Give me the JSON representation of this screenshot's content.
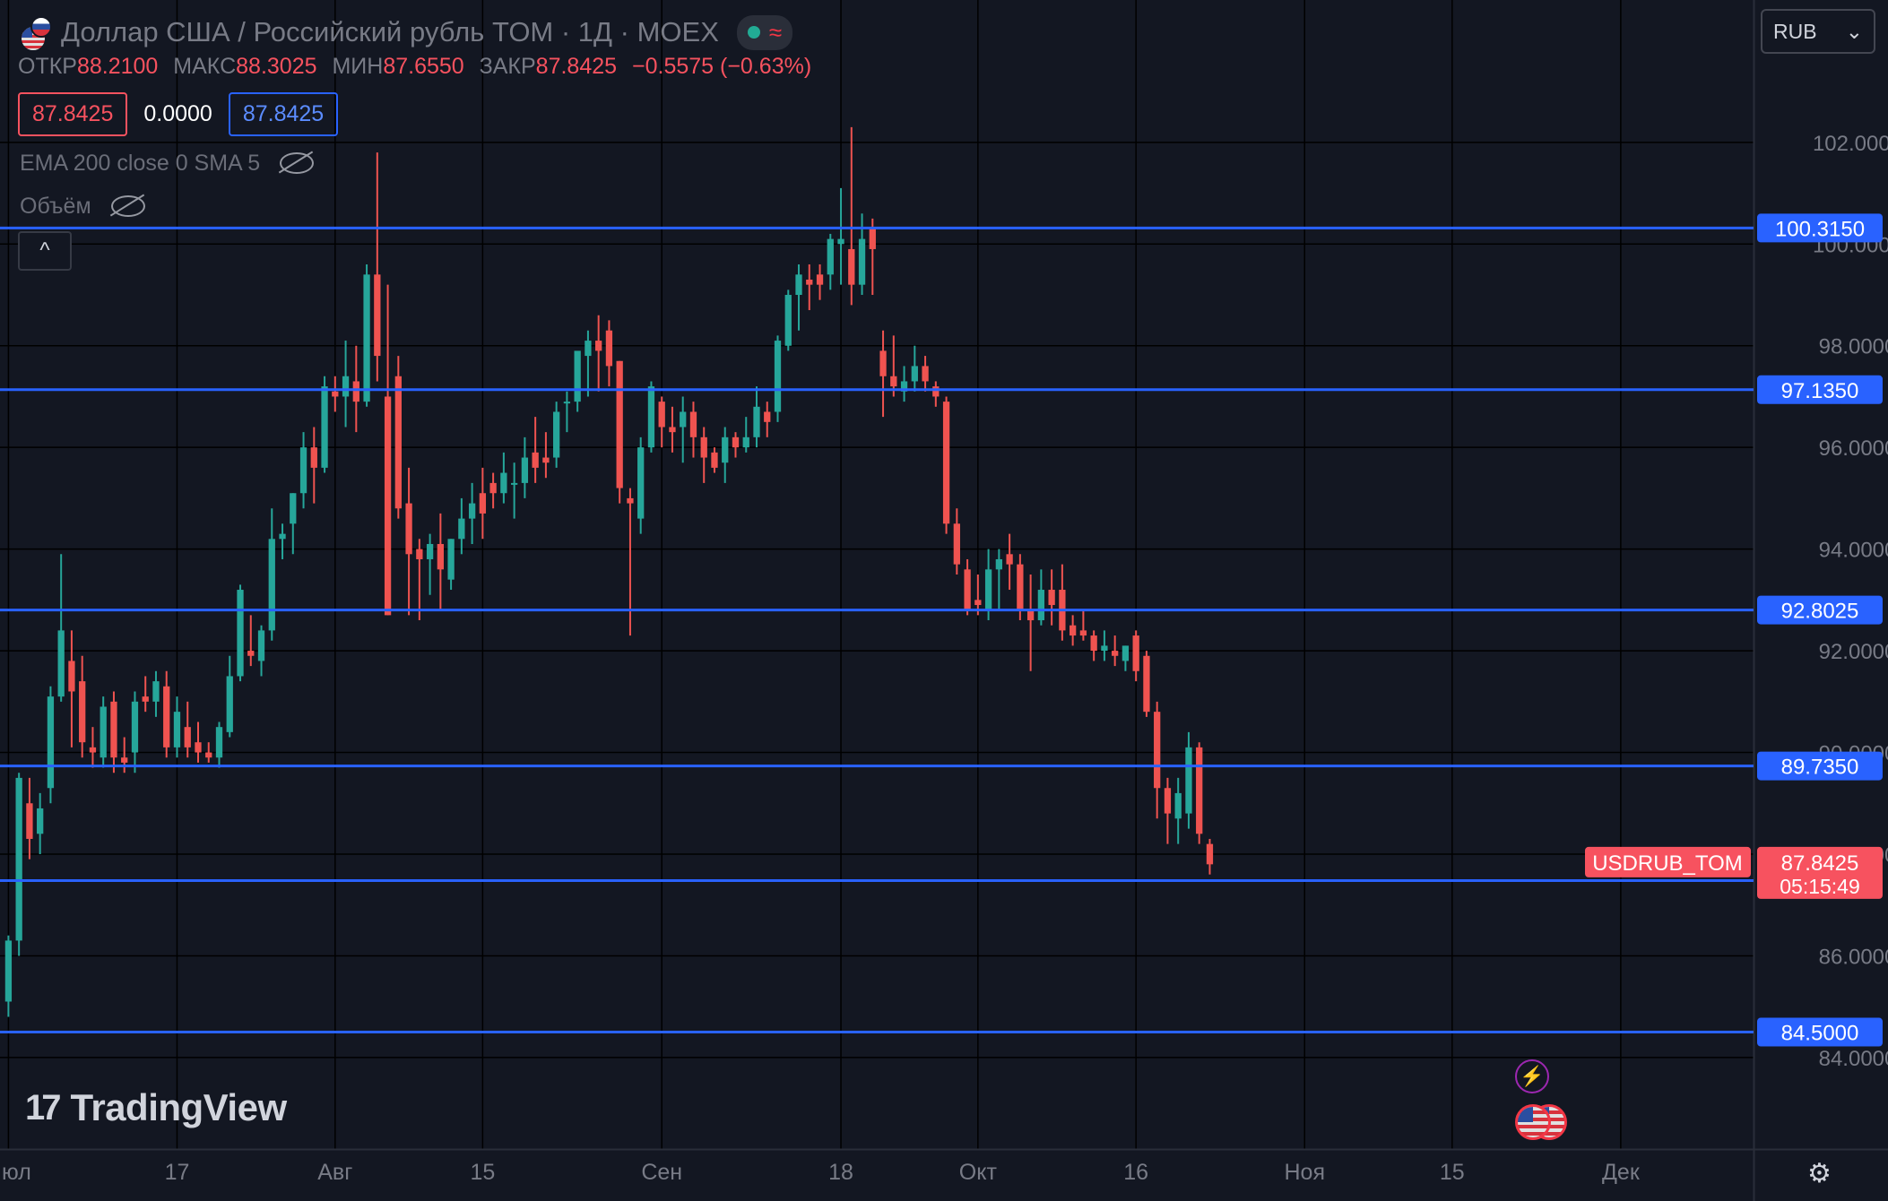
{
  "header": {
    "symbol_title": "Доллар США / Российский рубль TOM · 1Д · MOEX",
    "status_wave": "≈"
  },
  "ohlc": {
    "open_label": "ОТКР",
    "open_value": "88.2100",
    "high_label": "МАКС",
    "high_value": "88.3025",
    "low_label": "МИН",
    "low_value": "87.6550",
    "close_label": "ЗАКР",
    "close_value": "87.8425",
    "change": "−0.5575 (−0.63%)"
  },
  "price_boxes": {
    "sell": "87.8425",
    "spread": "0.0000",
    "buy": "87.8425"
  },
  "indicators": [
    {
      "label": "EMA 200 close 0 SMA 5",
      "icon": "eye-crossed-icon"
    },
    {
      "label": "Объём",
      "icon": "eye-crossed-icon"
    }
  ],
  "collapse_icon": "^",
  "currency_select": {
    "value": "RUB",
    "icon": "chevron-down-icon"
  },
  "logo": {
    "mark": "17",
    "text": "TradingView"
  },
  "settings_icon": "⚙",
  "colors": {
    "background": "#131722",
    "grid": "#000000",
    "up": "#26a69a",
    "down": "#ef5350",
    "level_line": "#2962ff",
    "text": "#787b86"
  },
  "chart_data": {
    "type": "candlestick",
    "symbol_label": "USDRUB_TOM",
    "last_price": "87.8425",
    "countdown": "05:15:49",
    "y_axis": {
      "ticks": [
        "84.0000",
        "86.0000",
        "88.0000",
        "90.0000",
        "92.0000",
        "94.0000",
        "96.0000",
        "98.0000",
        "100.0000",
        "102.0000"
      ],
      "ylim": [
        82.2,
        104.8
      ]
    },
    "x_axis": {
      "ticks": [
        {
          "label": "Июл",
          "day": 0
        },
        {
          "label": "17",
          "day": 16
        },
        {
          "label": "Авг",
          "day": 31
        },
        {
          "label": "15",
          "day": 45
        },
        {
          "label": "Сен",
          "day": 62
        },
        {
          "label": "18",
          "day": 79
        },
        {
          "label": "Окт",
          "day": 92
        },
        {
          "label": "16",
          "day": 107
        },
        {
          "label": "Ноя",
          "day": 123
        },
        {
          "label": "15",
          "day": 137
        },
        {
          "label": "Дек",
          "day": 153
        }
      ],
      "xlim": [
        -0.8,
        165.6
      ]
    },
    "levels": [
      "100.3150",
      "97.1350",
      "92.8025",
      "89.7350",
      "87.4800",
      "84.5000"
    ],
    "candles": [
      {
        "d": 0,
        "o": 85.1,
        "h": 86.4,
        "l": 84.8,
        "c": 86.3
      },
      {
        "d": 1,
        "o": 86.3,
        "h": 89.6,
        "l": 86.0,
        "c": 89.5
      },
      {
        "d": 2,
        "o": 89.0,
        "h": 89.5,
        "l": 87.9,
        "c": 88.3
      },
      {
        "d": 3,
        "o": 88.4,
        "h": 89.2,
        "l": 88.0,
        "c": 88.9
      },
      {
        "d": 4,
        "o": 89.3,
        "h": 91.3,
        "l": 89.0,
        "c": 91.1
      },
      {
        "d": 5,
        "o": 91.1,
        "h": 93.9,
        "l": 91.0,
        "c": 92.4
      },
      {
        "d": 6,
        "o": 91.8,
        "h": 92.4,
        "l": 90.1,
        "c": 91.2
      },
      {
        "d": 7,
        "o": 91.4,
        "h": 91.9,
        "l": 89.9,
        "c": 90.2
      },
      {
        "d": 8,
        "o": 90.1,
        "h": 90.5,
        "l": 89.7,
        "c": 90.0
      },
      {
        "d": 9,
        "o": 89.9,
        "h": 91.1,
        "l": 89.7,
        "c": 90.9
      },
      {
        "d": 10,
        "o": 91.0,
        "h": 91.2,
        "l": 89.6,
        "c": 89.9
      },
      {
        "d": 11,
        "o": 89.9,
        "h": 90.3,
        "l": 89.6,
        "c": 89.8
      },
      {
        "d": 12,
        "o": 90.0,
        "h": 91.2,
        "l": 89.6,
        "c": 91.0
      },
      {
        "d": 13,
        "o": 91.1,
        "h": 91.5,
        "l": 90.8,
        "c": 91.0
      },
      {
        "d": 14,
        "o": 91.0,
        "h": 91.6,
        "l": 90.7,
        "c": 91.4
      },
      {
        "d": 15,
        "o": 91.3,
        "h": 91.6,
        "l": 89.9,
        "c": 90.1
      },
      {
        "d": 16,
        "o": 90.1,
        "h": 91.1,
        "l": 89.9,
        "c": 90.8
      },
      {
        "d": 17,
        "o": 90.5,
        "h": 91.0,
        "l": 89.9,
        "c": 90.1
      },
      {
        "d": 18,
        "o": 90.2,
        "h": 90.6,
        "l": 89.8,
        "c": 90.0
      },
      {
        "d": 19,
        "o": 90.0,
        "h": 90.2,
        "l": 89.8,
        "c": 89.9
      },
      {
        "d": 20,
        "o": 89.9,
        "h": 90.6,
        "l": 89.7,
        "c": 90.5
      },
      {
        "d": 21,
        "o": 90.4,
        "h": 91.9,
        "l": 90.3,
        "c": 91.5
      },
      {
        "d": 22,
        "o": 91.5,
        "h": 93.3,
        "l": 91.4,
        "c": 93.2
      },
      {
        "d": 23,
        "o": 92.0,
        "h": 92.7,
        "l": 91.7,
        "c": 91.9
      },
      {
        "d": 24,
        "o": 91.8,
        "h": 92.5,
        "l": 91.5,
        "c": 92.4
      },
      {
        "d": 25,
        "o": 92.4,
        "h": 94.8,
        "l": 92.2,
        "c": 94.2
      },
      {
        "d": 26,
        "o": 94.2,
        "h": 94.5,
        "l": 93.8,
        "c": 94.3
      },
      {
        "d": 27,
        "o": 94.5,
        "h": 95.1,
        "l": 93.9,
        "c": 95.1
      },
      {
        "d": 28,
        "o": 95.1,
        "h": 96.3,
        "l": 94.8,
        "c": 96.0
      },
      {
        "d": 29,
        "o": 96.0,
        "h": 96.4,
        "l": 94.9,
        "c": 95.6
      },
      {
        "d": 30,
        "o": 95.6,
        "h": 97.4,
        "l": 95.5,
        "c": 97.2
      },
      {
        "d": 31,
        "o": 97.1,
        "h": 97.4,
        "l": 96.7,
        "c": 97.0
      },
      {
        "d": 32,
        "o": 97.0,
        "h": 98.1,
        "l": 96.4,
        "c": 97.4
      },
      {
        "d": 33,
        "o": 97.3,
        "h": 98.0,
        "l": 96.3,
        "c": 96.9
      },
      {
        "d": 34,
        "o": 96.9,
        "h": 99.6,
        "l": 96.8,
        "c": 99.4
      },
      {
        "d": 35,
        "o": 99.4,
        "h": 101.8,
        "l": 97.3,
        "c": 97.8
      },
      {
        "d": 36,
        "o": 97.0,
        "h": 99.2,
        "l": 92.7,
        "c": 92.7
      },
      {
        "d": 37,
        "o": 97.4,
        "h": 97.8,
        "l": 94.6,
        "c": 94.8
      },
      {
        "d": 38,
        "o": 94.9,
        "h": 95.6,
        "l": 92.7,
        "c": 93.9
      },
      {
        "d": 39,
        "o": 94.0,
        "h": 94.2,
        "l": 92.6,
        "c": 93.8
      },
      {
        "d": 40,
        "o": 93.8,
        "h": 94.3,
        "l": 93.1,
        "c": 94.1
      },
      {
        "d": 41,
        "o": 94.1,
        "h": 94.7,
        "l": 92.8,
        "c": 93.6
      },
      {
        "d": 42,
        "o": 93.4,
        "h": 94.2,
        "l": 93.2,
        "c": 94.2
      },
      {
        "d": 43,
        "o": 94.2,
        "h": 95.0,
        "l": 93.9,
        "c": 94.6
      },
      {
        "d": 44,
        "o": 94.6,
        "h": 95.3,
        "l": 94.1,
        "c": 94.9
      },
      {
        "d": 45,
        "o": 95.1,
        "h": 95.6,
        "l": 94.2,
        "c": 94.7
      },
      {
        "d": 46,
        "o": 95.3,
        "h": 95.5,
        "l": 94.8,
        "c": 95.1
      },
      {
        "d": 47,
        "o": 95.1,
        "h": 95.9,
        "l": 94.9,
        "c": 95.5
      },
      {
        "d": 48,
        "o": 95.3,
        "h": 95.7,
        "l": 94.6,
        "c": 95.3
      },
      {
        "d": 49,
        "o": 95.3,
        "h": 96.2,
        "l": 95.0,
        "c": 95.8
      },
      {
        "d": 50,
        "o": 95.9,
        "h": 96.6,
        "l": 95.3,
        "c": 95.6
      },
      {
        "d": 51,
        "o": 95.8,
        "h": 96.3,
        "l": 95.4,
        "c": 95.7
      },
      {
        "d": 52,
        "o": 95.8,
        "h": 96.9,
        "l": 95.6,
        "c": 96.7
      },
      {
        "d": 53,
        "o": 96.9,
        "h": 97.1,
        "l": 96.3,
        "c": 96.9
      },
      {
        "d": 54,
        "o": 96.9,
        "h": 97.8,
        "l": 96.7,
        "c": 97.9
      },
      {
        "d": 55,
        "o": 97.8,
        "h": 98.3,
        "l": 97.0,
        "c": 98.1
      },
      {
        "d": 56,
        "o": 98.1,
        "h": 98.6,
        "l": 97.1,
        "c": 97.9
      },
      {
        "d": 57,
        "o": 98.3,
        "h": 98.5,
        "l": 97.2,
        "c": 97.6
      },
      {
        "d": 58,
        "o": 97.7,
        "h": 97.7,
        "l": 94.9,
        "c": 95.2
      },
      {
        "d": 59,
        "o": 95.0,
        "h": 95.2,
        "l": 92.3,
        "c": 94.9
      },
      {
        "d": 60,
        "o": 94.6,
        "h": 96.2,
        "l": 94.3,
        "c": 96.0
      },
      {
        "d": 61,
        "o": 96.0,
        "h": 97.3,
        "l": 95.9,
        "c": 97.2
      },
      {
        "d": 62,
        "o": 96.9,
        "h": 97.0,
        "l": 96.0,
        "c": 96.4
      },
      {
        "d": 63,
        "o": 96.4,
        "h": 96.8,
        "l": 95.9,
        "c": 96.3
      },
      {
        "d": 64,
        "o": 96.4,
        "h": 97.0,
        "l": 95.7,
        "c": 96.7
      },
      {
        "d": 65,
        "o": 96.7,
        "h": 96.9,
        "l": 95.8,
        "c": 96.2
      },
      {
        "d": 66,
        "o": 96.2,
        "h": 96.4,
        "l": 95.3,
        "c": 95.8
      },
      {
        "d": 67,
        "o": 95.9,
        "h": 96.0,
        "l": 95.5,
        "c": 95.6
      },
      {
        "d": 68,
        "o": 95.7,
        "h": 96.4,
        "l": 95.3,
        "c": 96.2
      },
      {
        "d": 69,
        "o": 96.2,
        "h": 96.3,
        "l": 95.8,
        "c": 96.0
      },
      {
        "d": 70,
        "o": 96.0,
        "h": 96.6,
        "l": 95.9,
        "c": 96.2
      },
      {
        "d": 71,
        "o": 96.2,
        "h": 97.2,
        "l": 96.0,
        "c": 96.8
      },
      {
        "d": 72,
        "o": 96.7,
        "h": 96.9,
        "l": 96.2,
        "c": 96.5
      },
      {
        "d": 73,
        "o": 96.7,
        "h": 98.2,
        "l": 96.5,
        "c": 98.1
      },
      {
        "d": 74,
        "o": 98.0,
        "h": 99.1,
        "l": 97.9,
        "c": 99.0
      },
      {
        "d": 75,
        "o": 99.0,
        "h": 99.6,
        "l": 98.3,
        "c": 99.4
      },
      {
        "d": 76,
        "o": 99.3,
        "h": 99.6,
        "l": 98.7,
        "c": 99.2
      },
      {
        "d": 77,
        "o": 99.4,
        "h": 99.6,
        "l": 98.9,
        "c": 99.2
      },
      {
        "d": 78,
        "o": 99.4,
        "h": 100.2,
        "l": 99.1,
        "c": 100.1
      },
      {
        "d": 79,
        "o": 100.0,
        "h": 101.1,
        "l": 99.2,
        "c": 100.1
      },
      {
        "d": 80,
        "o": 99.9,
        "h": 102.3,
        "l": 98.8,
        "c": 99.2
      },
      {
        "d": 81,
        "o": 99.2,
        "h": 100.6,
        "l": 99.0,
        "c": 100.1
      },
      {
        "d": 82,
        "o": 100.3,
        "h": 100.5,
        "l": 99.0,
        "c": 99.9
      },
      {
        "d": 83,
        "o": 97.9,
        "h": 98.3,
        "l": 96.6,
        "c": 97.4
      },
      {
        "d": 84,
        "o": 97.4,
        "h": 98.2,
        "l": 97.0,
        "c": 97.2
      },
      {
        "d": 85,
        "o": 97.1,
        "h": 97.6,
        "l": 96.9,
        "c": 97.3
      },
      {
        "d": 86,
        "o": 97.3,
        "h": 98.0,
        "l": 97.1,
        "c": 97.6
      },
      {
        "d": 87,
        "o": 97.6,
        "h": 97.8,
        "l": 97.1,
        "c": 97.3
      },
      {
        "d": 88,
        "o": 97.2,
        "h": 97.3,
        "l": 96.8,
        "c": 97.0
      },
      {
        "d": 89,
        "o": 96.9,
        "h": 97.0,
        "l": 94.3,
        "c": 94.5
      },
      {
        "d": 90,
        "o": 94.5,
        "h": 94.8,
        "l": 93.5,
        "c": 93.7
      },
      {
        "d": 91,
        "o": 93.6,
        "h": 93.8,
        "l": 92.7,
        "c": 92.8
      },
      {
        "d": 92,
        "o": 93.0,
        "h": 93.5,
        "l": 92.7,
        "c": 92.9
      },
      {
        "d": 93,
        "o": 92.8,
        "h": 94.0,
        "l": 92.6,
        "c": 93.6
      },
      {
        "d": 94,
        "o": 93.6,
        "h": 94.0,
        "l": 92.8,
        "c": 93.8
      },
      {
        "d": 95,
        "o": 93.9,
        "h": 94.3,
        "l": 93.2,
        "c": 93.7
      },
      {
        "d": 96,
        "o": 93.7,
        "h": 93.9,
        "l": 92.6,
        "c": 92.8
      },
      {
        "d": 97,
        "o": 92.8,
        "h": 93.5,
        "l": 91.6,
        "c": 92.6
      },
      {
        "d": 98,
        "o": 92.6,
        "h": 93.6,
        "l": 92.5,
        "c": 93.2
      },
      {
        "d": 99,
        "o": 93.2,
        "h": 93.6,
        "l": 92.5,
        "c": 92.9
      },
      {
        "d": 100,
        "o": 93.2,
        "h": 93.7,
        "l": 92.2,
        "c": 92.4
      },
      {
        "d": 101,
        "o": 92.5,
        "h": 92.7,
        "l": 92.1,
        "c": 92.3
      },
      {
        "d": 102,
        "o": 92.4,
        "h": 92.8,
        "l": 92.2,
        "c": 92.3
      },
      {
        "d": 103,
        "o": 92.3,
        "h": 92.4,
        "l": 91.8,
        "c": 92.0
      },
      {
        "d": 104,
        "o": 92.0,
        "h": 92.4,
        "l": 91.8,
        "c": 92.1
      },
      {
        "d": 105,
        "o": 92.0,
        "h": 92.3,
        "l": 91.7,
        "c": 91.9
      },
      {
        "d": 106,
        "o": 91.8,
        "h": 92.1,
        "l": 91.6,
        "c": 92.1
      },
      {
        "d": 107,
        "o": 92.3,
        "h": 92.4,
        "l": 91.4,
        "c": 91.6
      },
      {
        "d": 108,
        "o": 91.9,
        "h": 92.0,
        "l": 90.7,
        "c": 90.8
      },
      {
        "d": 109,
        "o": 90.8,
        "h": 91.0,
        "l": 88.7,
        "c": 89.3
      },
      {
        "d": 110,
        "o": 89.3,
        "h": 89.5,
        "l": 88.2,
        "c": 88.8
      },
      {
        "d": 111,
        "o": 88.7,
        "h": 89.5,
        "l": 88.2,
        "c": 89.2
      },
      {
        "d": 112,
        "o": 88.8,
        "h": 90.4,
        "l": 88.5,
        "c": 90.1
      },
      {
        "d": 113,
        "o": 90.1,
        "h": 90.2,
        "l": 88.2,
        "c": 88.4
      },
      {
        "d": 114,
        "o": 88.2,
        "h": 88.3,
        "l": 87.6,
        "c": 87.8
      }
    ]
  }
}
